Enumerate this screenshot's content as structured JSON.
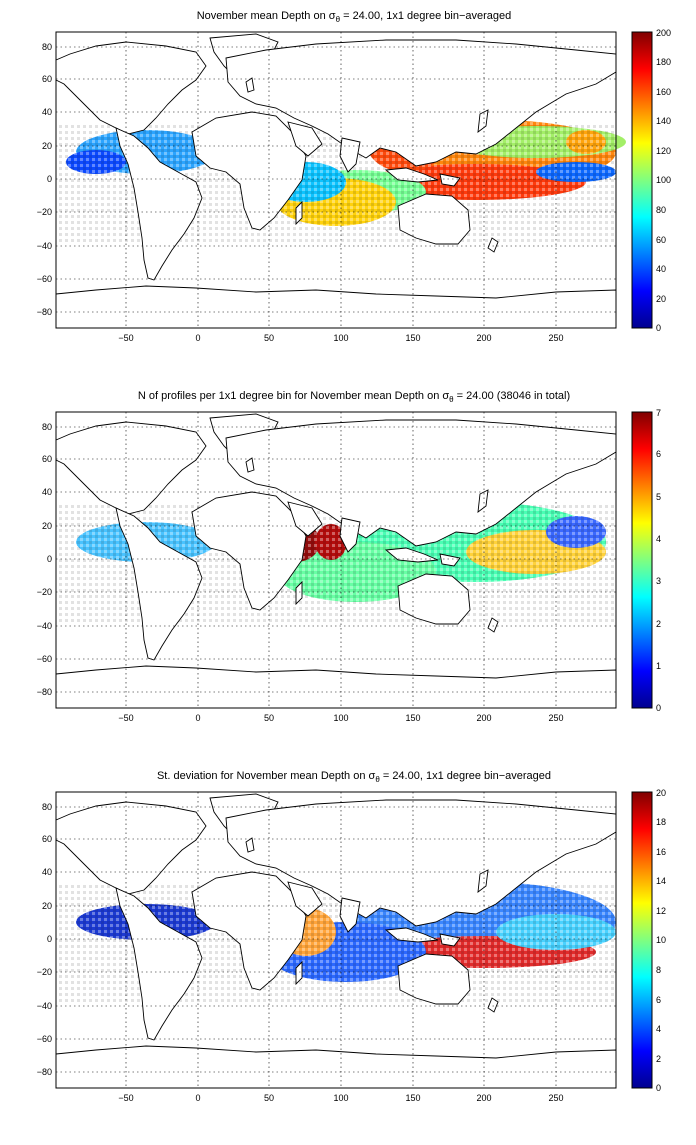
{
  "figure": {
    "panels": [
      {
        "title_prefix": "November mean Depth on ",
        "title_symbol": "σ",
        "title_sub": "θ",
        "title_suffix": " = 24.00, 1x1 degree bin−averaged",
        "colorbar": {
          "ticks": [
            "0",
            "20",
            "40",
            "60",
            "80",
            "100",
            "120",
            "140",
            "160",
            "180",
            "200"
          ]
        }
      },
      {
        "title_prefix": "N of profiles per 1x1 degree bin for November mean Depth on ",
        "title_symbol": "σ",
        "title_sub": "θ",
        "title_suffix": " = 24.00 (38046 in total)",
        "colorbar": {
          "ticks": [
            "0",
            "1",
            "2",
            "3",
            "4",
            "5",
            "6",
            "7"
          ]
        }
      },
      {
        "title_prefix": "St. deviation for November mean Depth on ",
        "title_symbol": "σ",
        "title_sub": "θ",
        "title_suffix": " = 24.00, 1x1 degree bin−averaged",
        "colorbar": {
          "ticks": [
            "0",
            "2",
            "4",
            "6",
            "8",
            "10",
            "12",
            "14",
            "16",
            "18",
            "20"
          ]
        }
      }
    ],
    "x_ticks": [
      "−50",
      "0",
      "50",
      "100",
      "150",
      "200",
      "250"
    ],
    "y_ticks": [
      "80",
      "60",
      "40",
      "20",
      "0",
      "−20",
      "−40",
      "−60",
      "−80"
    ]
  }
}
